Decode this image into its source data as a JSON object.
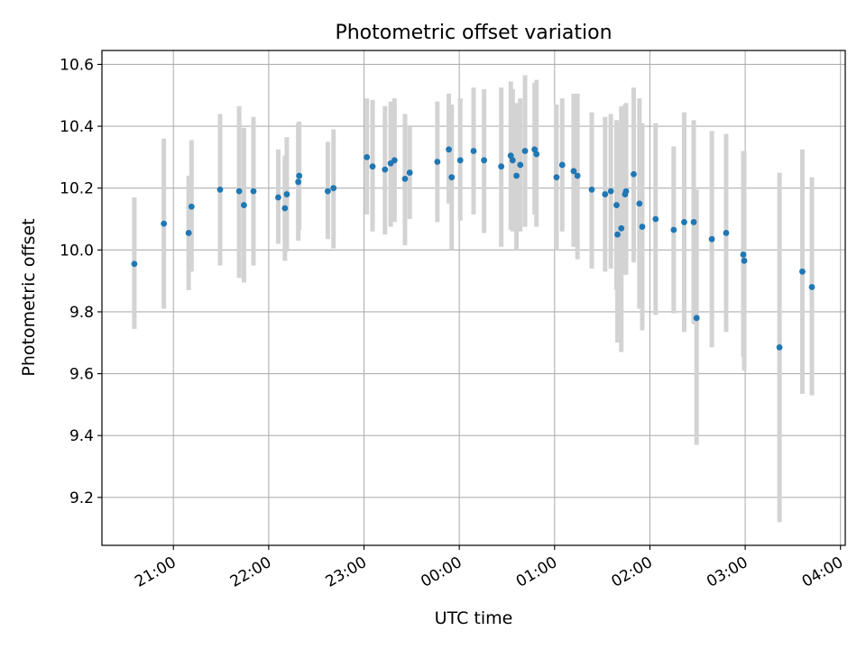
{
  "chart_data": {
    "type": "scatter",
    "title": "Photometric offset variation",
    "xlabel": "UTC time",
    "ylabel": "Photometric offset",
    "x_unit": "hours since 00:00 UTC (negative = previous day)",
    "xlim": [
      -3.75,
      4.05
    ],
    "ylim": [
      9.045,
      10.645
    ],
    "xticks": [
      {
        "value": -3,
        "label": "21:00"
      },
      {
        "value": -2,
        "label": "22:00"
      },
      {
        "value": -1,
        "label": "23:00"
      },
      {
        "value": 0,
        "label": "00:00"
      },
      {
        "value": 1,
        "label": "01:00"
      },
      {
        "value": 2,
        "label": "02:00"
      },
      {
        "value": 3,
        "label": "03:00"
      },
      {
        "value": 4,
        "label": "04:00"
      }
    ],
    "yticks": [
      9.2,
      9.4,
      9.6,
      9.8,
      10.0,
      10.2,
      10.4,
      10.6
    ],
    "grid": true,
    "point_color": "#1f77b4",
    "errorbar_color": "#d3d3d3",
    "series": [
      {
        "name": "",
        "points": [
          {
            "x": -3.41,
            "y": 9.955,
            "lo": 9.745,
            "hi": 10.17
          },
          {
            "x": -3.1,
            "y": 10.085,
            "lo": 9.81,
            "hi": 10.36
          },
          {
            "x": -2.84,
            "y": 10.055,
            "lo": 9.87,
            "hi": 10.24
          },
          {
            "x": -2.81,
            "y": 10.14,
            "lo": 9.93,
            "hi": 10.355
          },
          {
            "x": -2.51,
            "y": 10.195,
            "lo": 9.95,
            "hi": 10.44
          },
          {
            "x": -2.31,
            "y": 10.19,
            "lo": 9.91,
            "hi": 10.465
          },
          {
            "x": -2.26,
            "y": 10.145,
            "lo": 9.895,
            "hi": 10.395
          },
          {
            "x": -2.16,
            "y": 10.19,
            "lo": 9.95,
            "hi": 10.43
          },
          {
            "x": -1.9,
            "y": 10.17,
            "lo": 10.02,
            "hi": 10.325
          },
          {
            "x": -1.83,
            "y": 10.135,
            "lo": 9.965,
            "hi": 10.305
          },
          {
            "x": -1.81,
            "y": 10.18,
            "lo": 9.995,
            "hi": 10.365
          },
          {
            "x": -1.69,
            "y": 10.22,
            "lo": 10.03,
            "hi": 10.41
          },
          {
            "x": -1.68,
            "y": 10.24,
            "lo": 10.065,
            "hi": 10.415
          },
          {
            "x": -1.38,
            "y": 10.19,
            "lo": 10.035,
            "hi": 10.35
          },
          {
            "x": -1.32,
            "y": 10.2,
            "lo": 10.005,
            "hi": 10.39
          },
          {
            "x": -0.97,
            "y": 10.3,
            "lo": 10.115,
            "hi": 10.49
          },
          {
            "x": -0.91,
            "y": 10.27,
            "lo": 10.06,
            "hi": 10.485
          },
          {
            "x": -0.78,
            "y": 10.26,
            "lo": 10.05,
            "hi": 10.465
          },
          {
            "x": -0.72,
            "y": 10.28,
            "lo": 10.075,
            "hi": 10.48
          },
          {
            "x": -0.68,
            "y": 10.29,
            "lo": 10.09,
            "hi": 10.49
          },
          {
            "x": -0.57,
            "y": 10.23,
            "lo": 10.015,
            "hi": 10.44
          },
          {
            "x": -0.52,
            "y": 10.25,
            "lo": 10.1,
            "hi": 10.4
          },
          {
            "x": -0.23,
            "y": 10.285,
            "lo": 10.09,
            "hi": 10.48
          },
          {
            "x": -0.11,
            "y": 10.325,
            "lo": 10.15,
            "hi": 10.505
          },
          {
            "x": -0.08,
            "y": 10.235,
            "lo": 10.0,
            "hi": 10.47
          },
          {
            "x": 0.01,
            "y": 10.29,
            "lo": 10.095,
            "hi": 10.49
          },
          {
            "x": 0.15,
            "y": 10.32,
            "lo": 10.115,
            "hi": 10.525
          },
          {
            "x": 0.26,
            "y": 10.29,
            "lo": 10.055,
            "hi": 10.52
          },
          {
            "x": 0.44,
            "y": 10.27,
            "lo": 10.01,
            "hi": 10.525
          },
          {
            "x": 0.54,
            "y": 10.305,
            "lo": 10.065,
            "hi": 10.545
          },
          {
            "x": 0.56,
            "y": 10.29,
            "lo": 10.06,
            "hi": 10.52
          },
          {
            "x": 0.6,
            "y": 10.24,
            "lo": 10.0,
            "hi": 10.475
          },
          {
            "x": 0.64,
            "y": 10.275,
            "lo": 10.06,
            "hi": 10.49
          },
          {
            "x": 0.69,
            "y": 10.32,
            "lo": 10.075,
            "hi": 10.565
          },
          {
            "x": 0.79,
            "y": 10.325,
            "lo": 10.115,
            "hi": 10.54
          },
          {
            "x": 0.81,
            "y": 10.31,
            "lo": 10.075,
            "hi": 10.55
          },
          {
            "x": 1.02,
            "y": 10.235,
            "lo": 10.0,
            "hi": 10.47
          },
          {
            "x": 1.08,
            "y": 10.275,
            "lo": 10.06,
            "hi": 10.49
          },
          {
            "x": 1.2,
            "y": 10.255,
            "lo": 10.01,
            "hi": 10.505
          },
          {
            "x": 1.24,
            "y": 10.24,
            "lo": 9.97,
            "hi": 10.505
          },
          {
            "x": 1.39,
            "y": 10.195,
            "lo": 9.94,
            "hi": 10.445
          },
          {
            "x": 1.53,
            "y": 10.18,
            "lo": 9.93,
            "hi": 10.43
          },
          {
            "x": 1.59,
            "y": 10.19,
            "lo": 9.94,
            "hi": 10.44
          },
          {
            "x": 1.65,
            "y": 10.145,
            "lo": 9.87,
            "hi": 10.42
          },
          {
            "x": 1.66,
            "y": 10.05,
            "lo": 9.7,
            "hi": 10.41
          },
          {
            "x": 1.7,
            "y": 10.07,
            "lo": 9.67,
            "hi": 10.465
          },
          {
            "x": 1.74,
            "y": 10.18,
            "lo": 9.92,
            "hi": 10.47
          },
          {
            "x": 1.75,
            "y": 10.19,
            "lo": 9.92,
            "hi": 10.475
          },
          {
            "x": 1.83,
            "y": 10.245,
            "lo": 9.96,
            "hi": 10.525
          },
          {
            "x": 1.89,
            "y": 10.15,
            "lo": 9.81,
            "hi": 10.49
          },
          {
            "x": 1.92,
            "y": 10.075,
            "lo": 9.74,
            "hi": 10.41
          },
          {
            "x": 2.06,
            "y": 10.1,
            "lo": 9.79,
            "hi": 10.41
          },
          {
            "x": 2.25,
            "y": 10.065,
            "lo": 9.795,
            "hi": 10.335
          },
          {
            "x": 2.36,
            "y": 10.09,
            "lo": 9.735,
            "hi": 10.445
          },
          {
            "x": 2.46,
            "y": 10.09,
            "lo": 9.76,
            "hi": 10.42
          },
          {
            "x": 2.49,
            "y": 9.78,
            "lo": 9.37,
            "hi": 10.195
          },
          {
            "x": 2.65,
            "y": 10.035,
            "lo": 9.685,
            "hi": 10.385
          },
          {
            "x": 2.8,
            "y": 10.055,
            "lo": 9.735,
            "hi": 10.375
          },
          {
            "x": 2.98,
            "y": 9.985,
            "lo": 9.655,
            "hi": 10.32
          },
          {
            "x": 2.99,
            "y": 9.965,
            "lo": 9.61,
            "hi": 10.32
          },
          {
            "x": 3.36,
            "y": 9.685,
            "lo": 9.12,
            "hi": 10.25
          },
          {
            "x": 3.6,
            "y": 9.93,
            "lo": 9.535,
            "hi": 10.325
          },
          {
            "x": 3.7,
            "y": 9.88,
            "lo": 9.53,
            "hi": 10.235
          }
        ]
      }
    ]
  }
}
